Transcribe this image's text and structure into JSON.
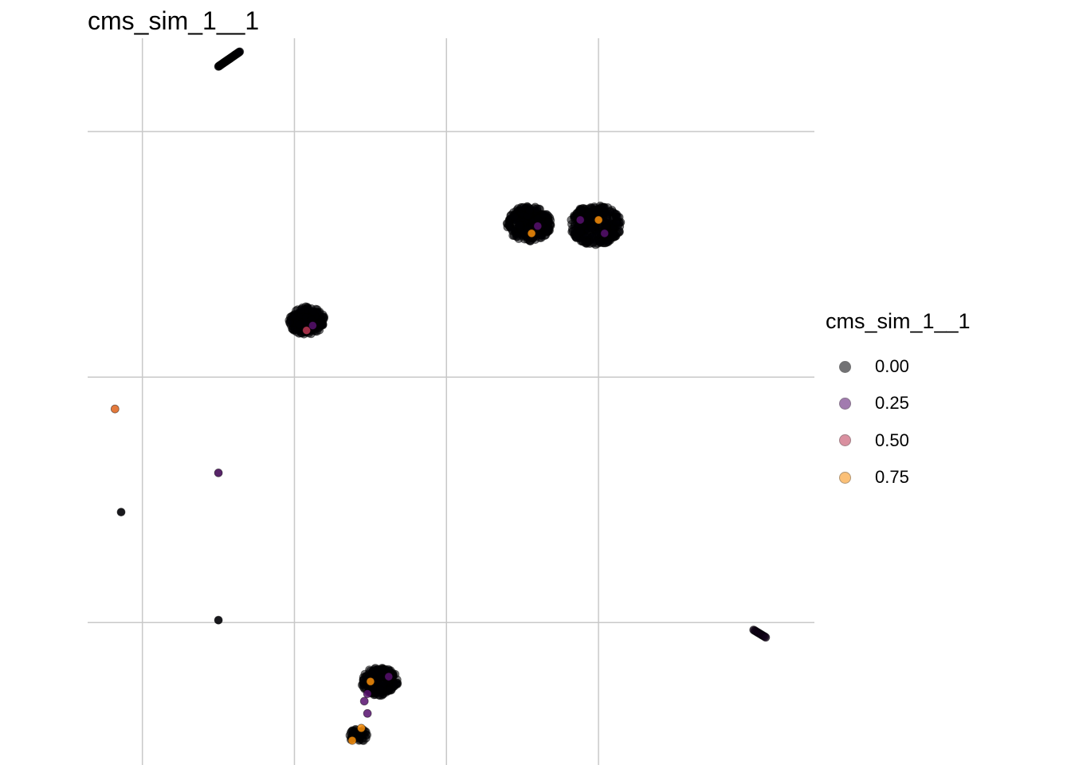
{
  "chart_data": {
    "type": "scatter",
    "title": "cms_sim_1__1",
    "xlabel": "",
    "ylabel": "",
    "grid": true,
    "legend": {
      "title": "cms_sim_1__1",
      "placement": "right",
      "entries": [
        {
          "label": "0.00",
          "value": 0.0,
          "color": "#000004"
        },
        {
          "label": "0.25",
          "value": 0.25,
          "color": "#57106e"
        },
        {
          "label": "0.50",
          "value": 0.5,
          "color": "#bc3754"
        },
        {
          "label": "0.75",
          "value": 0.75,
          "color": "#f98e09"
        }
      ]
    },
    "clusters": [
      {
        "kind": "line",
        "from": [
          -0.75,
          1.265
        ],
        "to": [
          -0.68,
          1.325
        ],
        "n": 40,
        "value": 0.0
      },
      {
        "kind": "blob",
        "center": [
          0.27,
          0.625
        ],
        "radius": 0.075,
        "n": 300,
        "value": 0.0
      },
      {
        "kind": "blob",
        "center": [
          0.49,
          0.62
        ],
        "radius": 0.085,
        "n": 320,
        "value": 0.0
      },
      {
        "kind": "blob",
        "center": [
          -0.46,
          0.23
        ],
        "radius": 0.06,
        "n": 200,
        "value": 0.0
      },
      {
        "kind": "point",
        "center": [
          -1.09,
          -0.13
        ],
        "value": 0.65
      },
      {
        "kind": "point",
        "center": [
          -0.75,
          -0.39
        ],
        "value": 0.2
      },
      {
        "kind": "point",
        "center": [
          -1.07,
          -0.55
        ],
        "value": 0.0
      },
      {
        "kind": "point",
        "center": [
          -0.75,
          -0.99
        ],
        "value": 0.0
      },
      {
        "kind": "line",
        "from": [
          1.01,
          -1.03
        ],
        "to": [
          1.05,
          -1.06
        ],
        "n": 12,
        "value": 0.05
      },
      {
        "kind": "blob",
        "center": [
          -0.22,
          -1.24
        ],
        "radius": 0.06,
        "n": 200,
        "value": 0.0
      },
      {
        "kind": "blob",
        "center": [
          -0.29,
          -1.46
        ],
        "radius": 0.03,
        "n": 40,
        "value": 0.0
      }
    ],
    "accents": [
      {
        "xy": [
          0.3,
          0.615
        ],
        "value": 0.25
      },
      {
        "xy": [
          0.28,
          0.585
        ],
        "value": 0.75
      },
      {
        "xy": [
          0.52,
          0.585
        ],
        "value": 0.25
      },
      {
        "xy": [
          0.5,
          0.64
        ],
        "value": 0.75
      },
      {
        "xy": [
          0.44,
          0.64
        ],
        "value": 0.25
      },
      {
        "xy": [
          -0.46,
          0.19
        ],
        "value": 0.5
      },
      {
        "xy": [
          -0.44,
          0.21
        ],
        "value": 0.25
      },
      {
        "xy": [
          -0.25,
          -1.24
        ],
        "value": 0.75
      },
      {
        "xy": [
          -0.19,
          -1.22
        ],
        "value": 0.25
      },
      {
        "xy": [
          -0.26,
          -1.29
        ],
        "value": 0.25
      },
      {
        "xy": [
          -0.27,
          -1.32
        ],
        "value": 0.25
      },
      {
        "xy": [
          -0.26,
          -1.37
        ],
        "value": 0.25
      },
      {
        "xy": [
          -0.28,
          -1.43
        ],
        "value": 0.75
      },
      {
        "xy": [
          -0.31,
          -1.48
        ],
        "value": 0.75
      }
    ],
    "xlim": [
      -1.18,
      1.21
    ],
    "ylim": [
      -1.58,
      1.38
    ]
  }
}
